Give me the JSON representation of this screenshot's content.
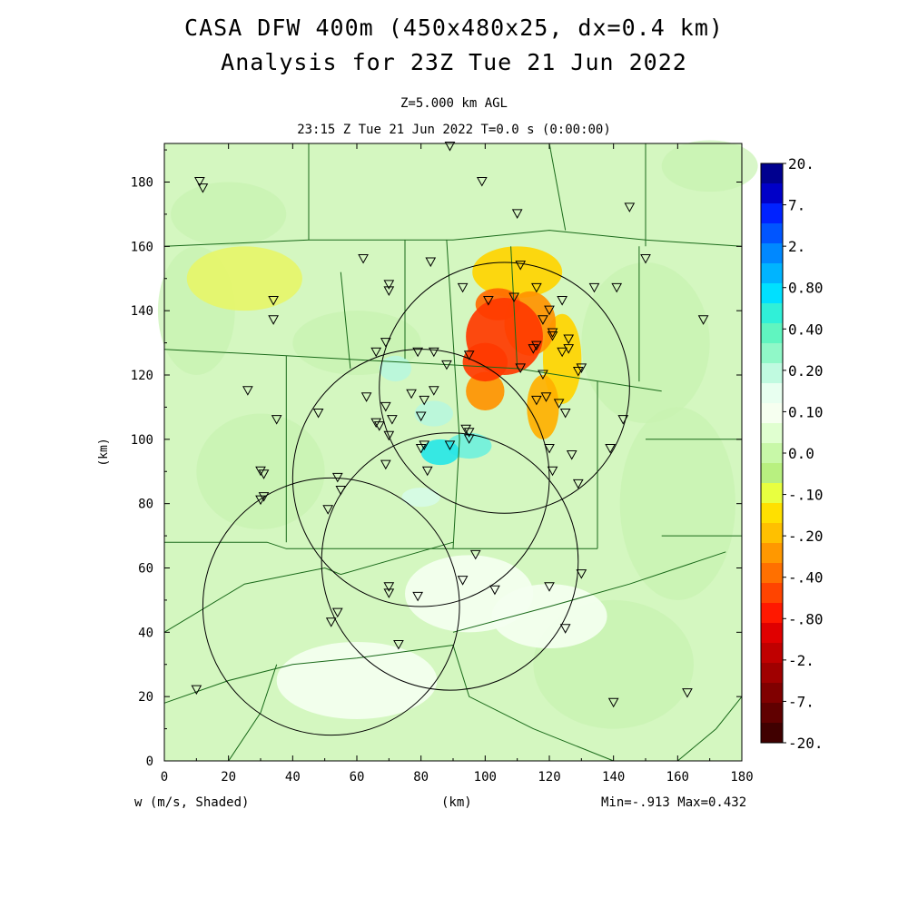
{
  "header": {
    "title_line1": "CASA DFW 400m (450x480x25, dx=0.4 km)",
    "title_line2": "Analysis for 23Z Tue 21 Jun 2022",
    "level": "Z=5.000 km AGL",
    "time": "23:15 Z Tue 21 Jun 2022   T=0.0 s (0:00:00)"
  },
  "footer": {
    "variable": "w (m/s, Shaded)",
    "x_unit": "(km)",
    "minmax": "Min=-.913 Max=0.432"
  },
  "chart_data": {
    "type": "heatmap",
    "variable": "w (m/s, Shaded)",
    "xlabel": "(km)",
    "ylabel": "(km)",
    "xlim": [
      0,
      180
    ],
    "ylim": [
      0,
      192
    ],
    "xticks": [
      0,
      20,
      40,
      60,
      80,
      100,
      120,
      140,
      160,
      180
    ],
    "yticks": [
      0,
      20,
      40,
      60,
      80,
      100,
      120,
      140,
      160,
      180
    ],
    "min": -0.913,
    "max": 0.432,
    "colorbar": {
      "labels": [
        "20.",
        "7.",
        "2.",
        "0.80",
        "0.40",
        "0.20",
        "0.10",
        "0.0",
        "-.10",
        "-.20",
        "-.40",
        "-.80",
        "-2.",
        "-7.",
        "-20."
      ],
      "colors": [
        "#00008f",
        "#0000c8",
        "#0022ff",
        "#0055ff",
        "#0088ff",
        "#00b4ff",
        "#00e0ff",
        "#30f0d8",
        "#60f5c0",
        "#90f8c8",
        "#c0fae0",
        "#e8fff0",
        "#f6fff0",
        "#e0ffd0",
        "#c8f8a8",
        "#b8f080",
        "#e8ff40",
        "#ffe000",
        "#ffc000",
        "#ff9800",
        "#ff7000",
        "#ff4400",
        "#ff1800",
        "#e00000",
        "#c00000",
        "#a00000",
        "#800000",
        "#600000",
        "#400000"
      ]
    },
    "radar_rings": [
      {
        "center": [
          106,
          116
        ],
        "radius": 39
      },
      {
        "center": [
          80,
          88
        ],
        "radius": 40
      },
      {
        "center": [
          89,
          62
        ],
        "radius": 40
      },
      {
        "center": [
          52,
          48
        ],
        "radius": 40
      }
    ],
    "cells": [
      {
        "x": 106,
        "y": 132,
        "rx": 12,
        "ry": 12,
        "value": -0.9
      },
      {
        "x": 100,
        "y": 124,
        "rx": 7,
        "ry": 6,
        "value": -0.8
      },
      {
        "x": 104,
        "y": 142,
        "rx": 7,
        "ry": 5,
        "value": -0.6
      },
      {
        "x": 114,
        "y": 136,
        "rx": 8,
        "ry": 10,
        "value": -0.5
      },
      {
        "x": 100,
        "y": 115,
        "rx": 6,
        "ry": 6,
        "value": -0.5
      },
      {
        "x": 118,
        "y": 110,
        "rx": 5,
        "ry": 10,
        "value": -0.3
      },
      {
        "x": 110,
        "y": 152,
        "rx": 14,
        "ry": 8,
        "value": -0.25
      },
      {
        "x": 124,
        "y": 125,
        "rx": 6,
        "ry": 14,
        "value": -0.2
      },
      {
        "x": 86,
        "y": 96,
        "rx": 6,
        "ry": 4,
        "value": 0.3
      },
      {
        "x": 95,
        "y": 98,
        "rx": 7,
        "ry": 4,
        "value": 0.25
      },
      {
        "x": 84,
        "y": 108,
        "rx": 6,
        "ry": 4,
        "value": 0.15
      },
      {
        "x": 72,
        "y": 122,
        "rx": 5,
        "ry": 4,
        "value": 0.12
      },
      {
        "x": 80,
        "y": 82,
        "rx": 6,
        "ry": 3,
        "value": 0.1
      },
      {
        "x": 95,
        "y": 52,
        "rx": 20,
        "ry": 12,
        "value": 0.02
      },
      {
        "x": 120,
        "y": 45,
        "rx": 18,
        "ry": 10,
        "value": 0.02
      },
      {
        "x": 60,
        "y": 25,
        "rx": 25,
        "ry": 12,
        "value": 0.01
      },
      {
        "x": 25,
        "y": 150,
        "rx": 18,
        "ry": 10,
        "value": -0.12
      }
    ],
    "stations": [
      [
        89,
        191
      ],
      [
        11,
        180
      ],
      [
        12,
        178
      ],
      [
        99,
        180
      ],
      [
        110,
        170
      ],
      [
        145,
        172
      ],
      [
        150,
        156
      ],
      [
        62,
        156
      ],
      [
        83,
        155
      ],
      [
        111,
        154
      ],
      [
        34,
        143
      ],
      [
        34,
        137
      ],
      [
        70,
        148
      ],
      [
        70,
        146
      ],
      [
        93,
        147
      ],
      [
        101,
        143
      ],
      [
        109,
        144
      ],
      [
        116,
        147
      ],
      [
        124,
        143
      ],
      [
        134,
        147
      ],
      [
        141,
        147
      ],
      [
        168,
        137
      ],
      [
        120,
        140
      ],
      [
        118,
        137
      ],
      [
        121,
        133
      ],
      [
        121,
        132
      ],
      [
        116,
        129
      ],
      [
        115,
        128
      ],
      [
        126,
        131
      ],
      [
        126,
        128
      ],
      [
        124,
        127
      ],
      [
        66,
        127
      ],
      [
        69,
        130
      ],
      [
        79,
        127
      ],
      [
        84,
        127
      ],
      [
        88,
        123
      ],
      [
        95,
        126
      ],
      [
        111,
        122
      ],
      [
        118,
        120
      ],
      [
        130,
        122
      ],
      [
        129,
        121
      ],
      [
        26,
        115
      ],
      [
        63,
        113
      ],
      [
        69,
        110
      ],
      [
        77,
        114
      ],
      [
        81,
        112
      ],
      [
        84,
        115
      ],
      [
        116,
        112
      ],
      [
        119,
        113
      ],
      [
        123,
        111
      ],
      [
        125,
        108
      ],
      [
        35,
        106
      ],
      [
        48,
        108
      ],
      [
        66,
        105
      ],
      [
        67,
        104
      ],
      [
        71,
        106
      ],
      [
        80,
        107
      ],
      [
        70,
        101
      ],
      [
        94,
        103
      ],
      [
        95,
        100
      ],
      [
        95,
        102
      ],
      [
        81,
        98
      ],
      [
        80,
        97
      ],
      [
        89,
        98
      ],
      [
        120,
        97
      ],
      [
        143,
        106
      ],
      [
        139,
        97
      ],
      [
        127,
        95
      ],
      [
        30,
        90
      ],
      [
        31,
        89
      ],
      [
        69,
        92
      ],
      [
        82,
        90
      ],
      [
        121,
        90
      ],
      [
        129,
        86
      ],
      [
        54,
        88
      ],
      [
        55,
        84
      ],
      [
        30,
        81
      ],
      [
        31,
        82
      ],
      [
        51,
        78
      ],
      [
        97,
        64
      ],
      [
        130,
        58
      ],
      [
        93,
        56
      ],
      [
        70,
        54
      ],
      [
        70,
        52
      ],
      [
        79,
        51
      ],
      [
        103,
        53
      ],
      [
        120,
        54
      ],
      [
        54,
        46
      ],
      [
        52,
        43
      ],
      [
        125,
        41
      ],
      [
        73,
        36
      ],
      [
        10,
        22
      ],
      [
        140,
        18
      ],
      [
        163,
        21
      ]
    ],
    "county_lines": [
      [
        [
          0,
          128
        ],
        [
          38,
          126
        ],
        [
          110,
          122
        ],
        [
          155,
          115
        ]
      ],
      [
        [
          0,
          68
        ],
        [
          32,
          68
        ],
        [
          38,
          66
        ],
        [
          90,
          66
        ],
        [
          135,
          66
        ]
      ],
      [
        [
          38,
          126
        ],
        [
          38,
          68
        ]
      ],
      [
        [
          55,
          152
        ],
        [
          58,
          122
        ]
      ],
      [
        [
          75,
          162
        ],
        [
          75,
          125
        ]
      ],
      [
        [
          88,
          162
        ],
        [
          92,
          100
        ],
        [
          90,
          66
        ]
      ],
      [
        [
          108,
          160
        ],
        [
          110,
          122
        ]
      ],
      [
        [
          135,
          118
        ],
        [
          135,
          66
        ]
      ],
      [
        [
          148,
          160
        ],
        [
          148,
          118
        ]
      ],
      [
        [
          0,
          40
        ],
        [
          25,
          55
        ],
        [
          50,
          60
        ],
        [
          55,
          58
        ],
        [
          90,
          68
        ]
      ],
      [
        [
          90,
          40
        ],
        [
          120,
          48
        ],
        [
          145,
          55
        ],
        [
          175,
          65
        ]
      ],
      [
        [
          0,
          18
        ],
        [
          20,
          25
        ],
        [
          40,
          30
        ],
        [
          60,
          32
        ],
        [
          90,
          36
        ]
      ],
      [
        [
          90,
          36
        ],
        [
          95,
          20
        ],
        [
          115,
          10
        ],
        [
          140,
          0
        ]
      ],
      [
        [
          150,
          100
        ],
        [
          180,
          100
        ]
      ],
      [
        [
          155,
          70
        ],
        [
          180,
          70
        ]
      ],
      [
        [
          90,
          162
        ],
        [
          120,
          165
        ],
        [
          150,
          162
        ],
        [
          180,
          160
        ]
      ],
      [
        [
          0,
          160
        ],
        [
          45,
          162
        ],
        [
          90,
          162
        ]
      ],
      [
        [
          120,
          192
        ],
        [
          125,
          165
        ]
      ],
      [
        [
          45,
          192
        ],
        [
          45,
          162
        ]
      ],
      [
        [
          150,
          192
        ],
        [
          150,
          160
        ]
      ],
      [
        [
          20,
          0
        ],
        [
          30,
          15
        ],
        [
          35,
          30
        ]
      ],
      [
        [
          160,
          0
        ],
        [
          172,
          10
        ],
        [
          180,
          20
        ]
      ]
    ]
  }
}
